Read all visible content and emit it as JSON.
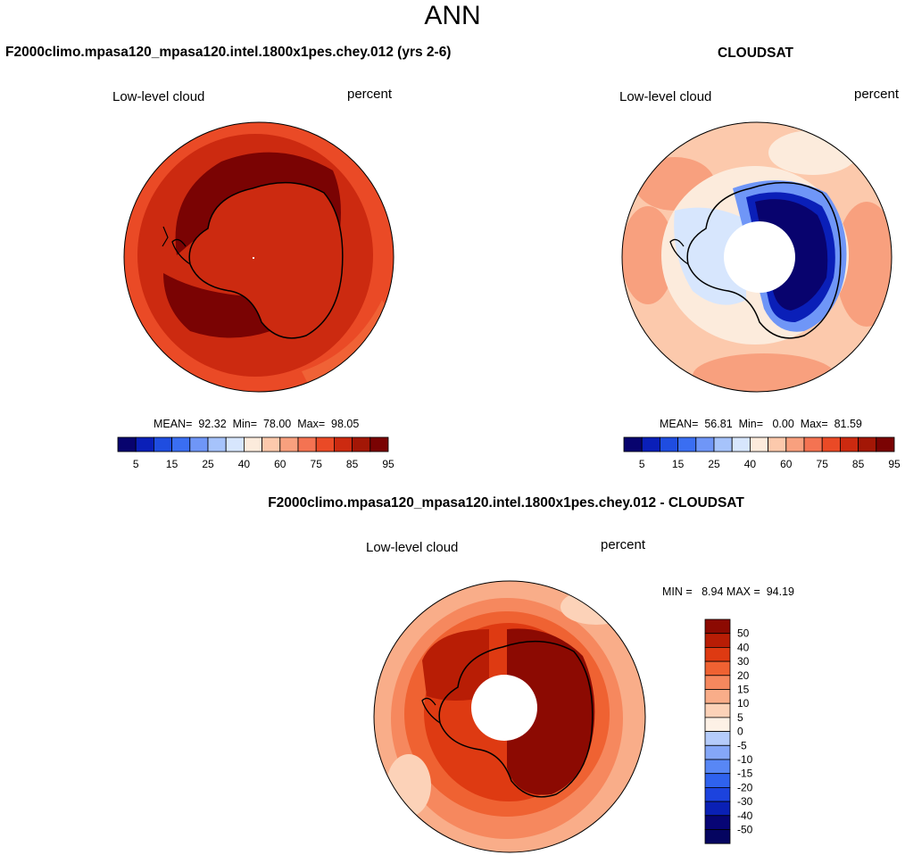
{
  "season": "ANN",
  "palette": {
    "abs": [
      "#08036e",
      "#0a1fb8",
      "#1f4de0",
      "#3a6ef2",
      "#6f96f7",
      "#a6c3fb",
      "#d7e6fd",
      "#fcebdc",
      "#fcc9ac",
      "#f8a07e",
      "#f47352",
      "#ea4a26",
      "#cc2a10",
      "#a31706",
      "#7a0303"
    ],
    "diff": [
      "#070575",
      "#0a20b5",
      "#1c43de",
      "#2f62ee",
      "#5887f5",
      "#85a7f8",
      "#b5ccfb",
      "#fdf1e6",
      "#fcd2b8",
      "#f9ad89",
      "#f6885e",
      "#ef6232",
      "#de3a12",
      "#b81d05",
      "#8c0a02"
    ]
  },
  "panels": {
    "test": {
      "title": "F2000climo.mpasa120_mpasa120.intel.1800x1pes.chey.012 (yrs 2-6)",
      "variable": "Low-level cloud",
      "units": "percent",
      "stats": "MEAN=  92.32  Min=  78.00  Max=  98.05",
      "colorbar_labels": [
        "5",
        "15",
        "25",
        "40",
        "60",
        "75",
        "85",
        "95"
      ]
    },
    "ref": {
      "title": "CLOUDSAT",
      "variable": "Low-level cloud",
      "units": "percent",
      "stats": "MEAN=  56.81  Min=   0.00  Max=  81.59",
      "colorbar_labels": [
        "5",
        "15",
        "25",
        "40",
        "60",
        "75",
        "85",
        "95"
      ]
    },
    "diff": {
      "title": "F2000climo.mpasa120_mpasa120.intel.1800x1pes.chey.012 - CLOUDSAT",
      "variable": "Low-level cloud",
      "units": "percent",
      "stats": "MIN =   8.94 MAX =  94.19",
      "colorbar_labels": [
        "50",
        "40",
        "30",
        "20",
        "15",
        "10",
        "5",
        "0",
        "-5",
        "-10",
        "-15",
        "-20",
        "-30",
        "-40",
        "-50"
      ]
    }
  }
}
